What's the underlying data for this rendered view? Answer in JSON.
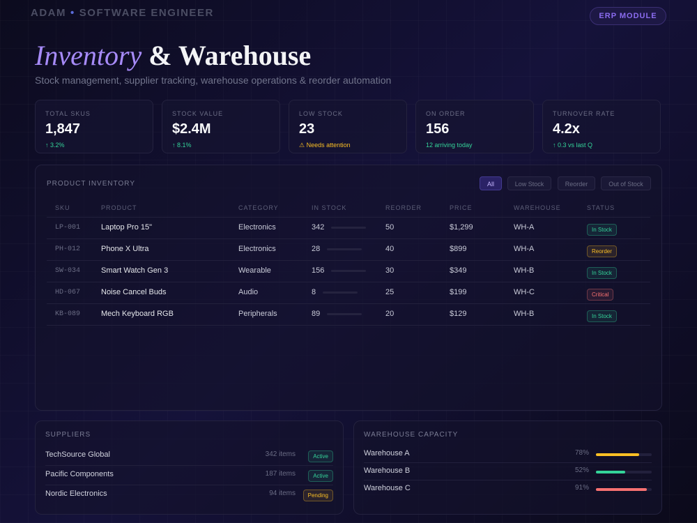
{
  "header": {
    "author": "ADAM",
    "separator": "•",
    "role": "SOFTWARE ENGINEER",
    "badge": "ERP MODULE"
  },
  "title": {
    "highlight": "Inventory",
    "rest": "& Warehouse",
    "subtitle": "Stock management, supplier tracking, warehouse operations & reorder automation"
  },
  "kpis": [
    {
      "label": "TOTAL SKUS",
      "value": "1,847",
      "note": "↑ 3.2%",
      "color": "#34d399"
    },
    {
      "label": "STOCK VALUE",
      "value": "$2.4M",
      "note": "↑ 8.1%",
      "color": "#34d399"
    },
    {
      "label": "LOW STOCK",
      "value": "23",
      "note": "⚠ Needs attention",
      "color": "#fbbf24"
    },
    {
      "label": "ON ORDER",
      "value": "156",
      "note": "12 arriving today",
      "color": "#34d399"
    },
    {
      "label": "TURNOVER RATE",
      "value": "4.2x",
      "note": "↑ 0.3 vs last Q",
      "color": "#34d399"
    }
  ],
  "inventory": {
    "title": "PRODUCT INVENTORY",
    "filters": [
      "All",
      "Low Stock",
      "Reorder",
      "Out of Stock"
    ],
    "active_filter": 0,
    "columns": [
      "SKU",
      "PRODUCT",
      "CATEGORY",
      "IN STOCK",
      "REORDER",
      "PRICE",
      "WAREHOUSE",
      "STATUS"
    ],
    "rows": [
      {
        "cells": [
          "LP-001",
          "Laptop Pro 15\"",
          "Electronics",
          "342",
          "50",
          "$1,299",
          "WH-A",
          "In Stock"
        ],
        "color": "#34d399"
      },
      {
        "cells": [
          "PH-012",
          "Phone X Ultra",
          "Electronics",
          "28",
          "40",
          "$899",
          "WH-A",
          "Reorder"
        ],
        "color": "#fbbf24"
      },
      {
        "cells": [
          "SW-034",
          "Smart Watch Gen 3",
          "Wearable",
          "156",
          "30",
          "$349",
          "WH-B",
          "In Stock"
        ],
        "color": "#34d399"
      },
      {
        "cells": [
          "HD-067",
          "Noise Cancel Buds",
          "Audio",
          "8",
          "25",
          "$199",
          "WH-C",
          "Critical"
        ],
        "color": "#f87171"
      },
      {
        "cells": [
          "KB-089",
          "Mech Keyboard RGB",
          "Peripherals",
          "89",
          "20",
          "$129",
          "WH-B",
          "In Stock"
        ],
        "color": "#34d399"
      }
    ]
  },
  "suppliers": {
    "title": "SUPPLIERS",
    "rows": [
      {
        "name": "TechSource Global",
        "items": "342 items",
        "status": "Active",
        "color": "#34d399"
      },
      {
        "name": "Pacific Components",
        "items": "187 items",
        "status": "Active",
        "color": "#34d399"
      },
      {
        "name": "Nordic Electronics",
        "items": "94 items",
        "status": "Pending",
        "color": "#fbbf24"
      }
    ]
  },
  "capacity": {
    "title": "WAREHOUSE CAPACITY",
    "rows": [
      {
        "name": "Warehouse A",
        "percent": {
          "value": 78,
          "label": "78%"
        },
        "color": "#fbbf24"
      },
      {
        "name": "Warehouse B",
        "percent": {
          "value": 52,
          "label": "52%"
        },
        "color": "#34d399"
      },
      {
        "name": "Warehouse C",
        "percent": {
          "value": 91,
          "label": "91%"
        },
        "color": "#f87171"
      }
    ]
  }
}
